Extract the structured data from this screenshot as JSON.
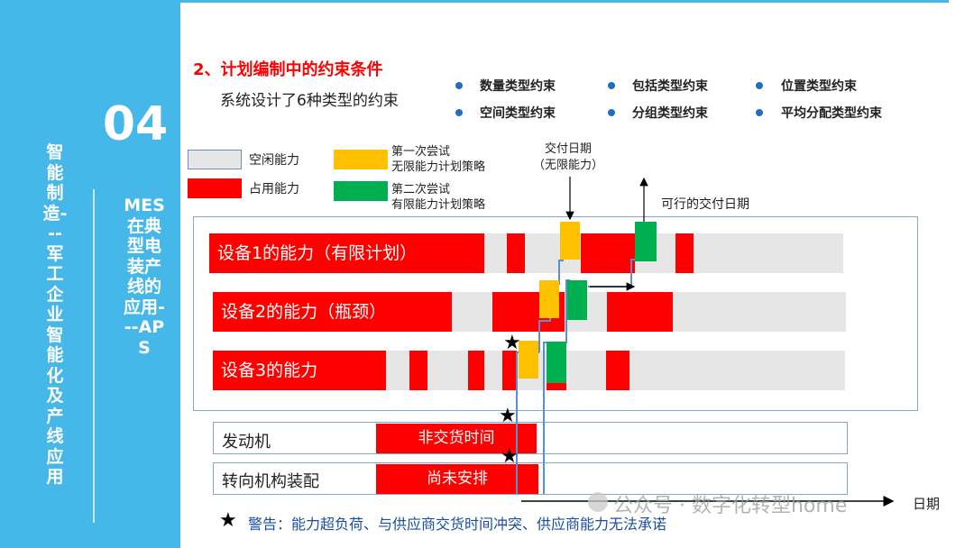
{
  "sidebar": {
    "section_number": "04",
    "left_vertical_title": "智能制造---军工企业智能化及产线应用",
    "right_vertical_title": "MES在典型电装产线的应用---APS"
  },
  "header": {
    "title": "2、计划编制中的约束条件",
    "subtitle": "系统设计了6种类型的约束"
  },
  "constraints": [
    "数量类型约束",
    "包括类型约束",
    "位置类型约束",
    "空间类型约束",
    "分组类型约束",
    "平均分配类型约束"
  ],
  "legend": {
    "idle": "空闲能力",
    "occupied": "占用能力",
    "first_try_line1": "第一次尝试",
    "first_try_line2": "无限能力计划策略",
    "second_try_line1": "第二次尝试",
    "second_try_line2": "有限能力计划策略"
  },
  "annotations": {
    "delivery_date_line1": "交付日期",
    "delivery_date_line2": "（无限能力）",
    "feasible_date": "可行的交付日期",
    "date_axis": "日期"
  },
  "resources": {
    "r1": "设备1的能力（有限计划）",
    "r2": "设备2的能力（瓶颈）",
    "r3": "设备3的能力"
  },
  "materials": {
    "m1_label": "发动机",
    "m1_block": "非交货时间",
    "m2_label": "转向机构装配",
    "m2_block": "尚未安排"
  },
  "warning": "警告：能力超负荷、与供应商交货时间冲突、供应商能力无法承诺",
  "watermark": "公众号 · 数字化转型home",
  "colors": {
    "sidebar": "#45b7e9",
    "occupied": "#ff0000",
    "idle": "#e6e6e6",
    "first_try": "#ffc000",
    "second_try": "#00b050",
    "title_red": "#ff0000"
  }
}
